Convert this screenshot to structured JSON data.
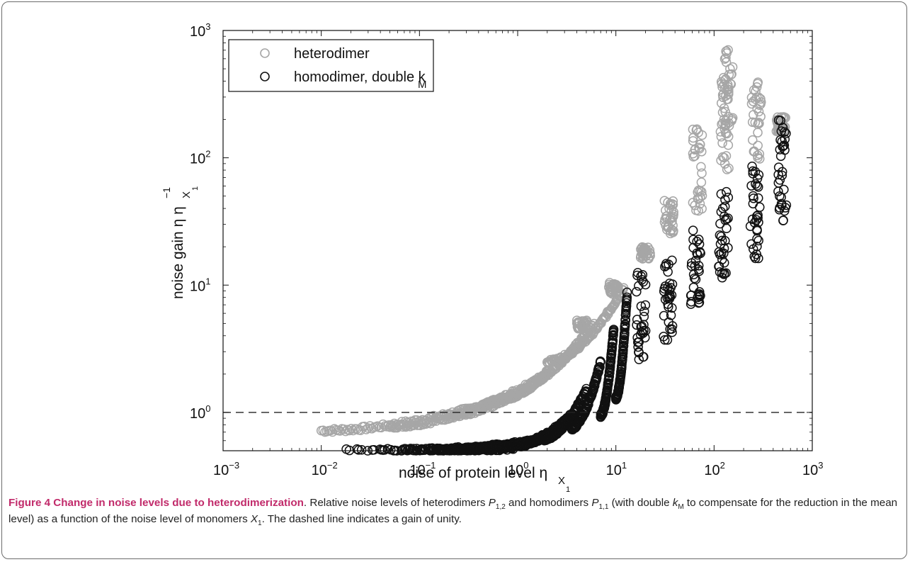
{
  "chart_data": {
    "type": "scatter",
    "xscale": "log",
    "yscale": "log",
    "xlim": [
      0.001,
      1000
    ],
    "ylim": [
      0.5,
      1000
    ],
    "x_ticks": [
      {
        "base": "10",
        "exp": "−3"
      },
      {
        "base": "10",
        "exp": "−2"
      },
      {
        "base": "10",
        "exp": "−1"
      },
      {
        "base": "10",
        "exp": "0"
      },
      {
        "base": "10",
        "exp": "1"
      },
      {
        "base": "10",
        "exp": "2"
      },
      {
        "base": "10",
        "exp": "3"
      }
    ],
    "y_ticks": [
      {
        "base": "10",
        "exp": "0"
      },
      {
        "base": "10",
        "exp": "1"
      },
      {
        "base": "10",
        "exp": "2"
      },
      {
        "base": "10",
        "exp": "3"
      }
    ],
    "xlabel": {
      "main": "noise of protein level η",
      "sub": "X",
      "subsub": "1"
    },
    "ylabel": {
      "main": "noise gain η η",
      "sup": "−1",
      "sub": "X",
      "subsub": "1"
    },
    "grid": false,
    "legend_position": "top-left",
    "reference_line": {
      "y": 1,
      "style": "dashed",
      "color": "#222222"
    },
    "series": [
      {
        "name": "heterodimer",
        "color": "#a6a6a6",
        "curves": [
          {
            "x_range": [
              0.01,
              1.2
            ],
            "y_range": [
              0.72,
              1.45
            ]
          },
          {
            "x_range": [
              0.05,
              2.0
            ],
            "y_range": [
              0.78,
              2.0
            ]
          },
          {
            "x_range": [
              0.2,
              3.5
            ],
            "y_range": [
              0.95,
              3.0
            ]
          },
          {
            "x_range": [
              0.5,
              6.0
            ],
            "y_range": [
              1.2,
              5.0
            ]
          },
          {
            "x_range": [
              2.0,
              12.0
            ],
            "y_range": [
              2.5,
              9.5
            ]
          }
        ],
        "clusters": [
          {
            "x": 4.5,
            "y_range": [
              4.5,
              5.3
            ]
          },
          {
            "x": 9.5,
            "y_range": [
              8.5,
              10.5
            ]
          },
          {
            "x": 20,
            "y_range": [
              16,
              20
            ]
          },
          {
            "x": 35,
            "y_range": [
              25,
              47
            ]
          },
          {
            "x": 68,
            "y_range": [
              38,
              170
            ]
          },
          {
            "x": 130,
            "y_range": [
              80,
              420
            ]
          },
          {
            "x": 140,
            "y_range": [
              150,
              720
            ]
          },
          {
            "x": 270,
            "y_range": [
              95,
              400
            ]
          },
          {
            "x": 480,
            "y_range": [
              160,
              210
            ]
          }
        ]
      },
      {
        "name": "homodimer, double k",
        "name_sub": "M",
        "color": "#111111",
        "curves": [
          {
            "x_range": [
              0.018,
              0.9
            ],
            "y_range": [
              0.5,
              0.52
            ]
          },
          {
            "x_range": [
              0.05,
              1.2
            ],
            "y_range": [
              0.5,
              0.56
            ]
          },
          {
            "x_range": [
              0.1,
              1.5
            ],
            "y_range": [
              0.5,
              0.6
            ]
          },
          {
            "x_range": [
              0.3,
              2.5
            ],
            "y_range": [
              0.5,
              0.68
            ]
          },
          {
            "x_range": [
              0.9,
              3.5
            ],
            "y_range": [
              0.55,
              0.95
            ]
          },
          {
            "x_range": [
              1.8,
              5.0
            ],
            "y_range": [
              0.62,
              1.5
            ]
          },
          {
            "x_range": [
              3.5,
              7.0
            ],
            "y_range": [
              0.75,
              2.5
            ]
          },
          {
            "x_range": [
              7.0,
              9.5
            ],
            "y_range": [
              0.95,
              4.5
            ]
          },
          {
            "x_range": [
              10.0,
              13.0
            ],
            "y_range": [
              1.3,
              8.5
            ]
          }
        ],
        "clusters": [
          {
            "x": 18,
            "y_range": [
              2.1,
              13
            ]
          },
          {
            "x": 34,
            "y_range": [
              3.6,
              17
            ]
          },
          {
            "x": 65,
            "y_range": [
              6.5,
              29
            ]
          },
          {
            "x": 125,
            "y_range": [
              11,
              55
            ]
          },
          {
            "x": 260,
            "y_range": [
              16,
              95
            ]
          },
          {
            "x": 500,
            "y_range": [
              30,
              210
            ]
          }
        ]
      }
    ]
  },
  "caption": {
    "figure_label": "Figure 4 Change in noise levels due to heterodimerization",
    "text": ". Relative noise levels of heterodimers P1,2 and homodimers P1,1 (with double kM to compensate for the reduction in the mean level) as a function of the noise level of monomers X1. The dashed line indicates a gain of unity.",
    "parts": {
      "t1": ". Relative noise levels of heterodimers ",
      "v1": "P",
      "s1": "1,2",
      "t2": " and homodimers ",
      "v2": "P",
      "s2": "1,1",
      "t3": " (with double ",
      "v3": "k",
      "s3": "M",
      "t4": " to compensate for the reduction in the mean level) as a function of the noise level of monomers ",
      "v4": "X",
      "s4": "1",
      "t5": ". The dashed line indicates a gain of unity."
    }
  }
}
